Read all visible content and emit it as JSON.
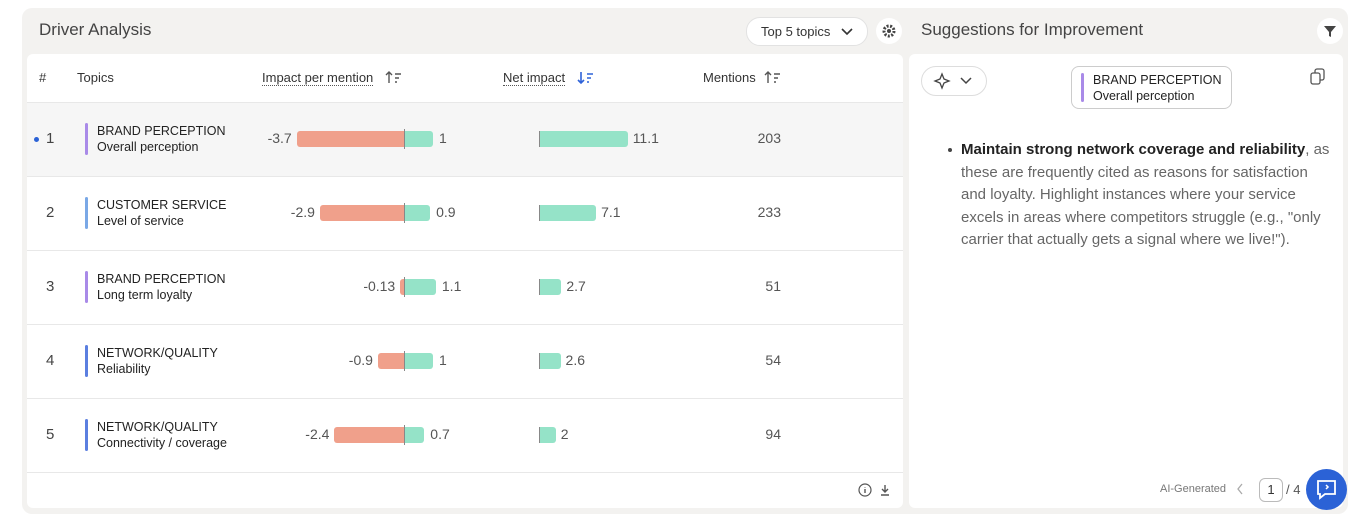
{
  "header": {
    "title": "Driver Analysis",
    "topics_dropdown": "Top 5 topics"
  },
  "table": {
    "columns": [
      "#",
      "Topics",
      "Impact per mention",
      "Net impact",
      "Mentions"
    ],
    "rows": [
      {
        "rank": 1,
        "category": "BRAND PERCEPTION",
        "topic": "Overall perception",
        "accent": "#a98ae8",
        "negative_impact": -3.7,
        "positive_impact": 1,
        "net_impact": 11.1,
        "mentions": 203
      },
      {
        "rank": 2,
        "category": "CUSTOMER SERVICE",
        "topic": "Level of service",
        "accent": "#7aa8e6",
        "negative_impact": -2.9,
        "positive_impact": 0.9,
        "net_impact": 7.1,
        "mentions": 233
      },
      {
        "rank": 3,
        "category": "BRAND PERCEPTION",
        "topic": "Long term loyalty",
        "accent": "#a98ae8",
        "negative_impact": -0.13,
        "positive_impact": 1.1,
        "net_impact": 2.7,
        "mentions": 51
      },
      {
        "rank": 4,
        "category": "NETWORK/QUALITY",
        "topic": "Reliability",
        "accent": "#5b7fe0",
        "negative_impact": -0.9,
        "positive_impact": 1,
        "net_impact": 2.6,
        "mentions": 54
      },
      {
        "rank": 5,
        "category": "NETWORK/QUALITY",
        "topic": "Connectivity / coverage",
        "accent": "#5b7fe0",
        "negative_impact": -2.4,
        "positive_impact": 0.7,
        "net_impact": 2,
        "mentions": 94
      }
    ],
    "negative_color": "#f0a08b",
    "positive_color": "#95e3c8"
  },
  "suggestions": {
    "title": "Suggestions for Improvement",
    "tag_category": "BRAND PERCEPTION",
    "tag_topic": "Overall perception",
    "bold_text": "Maintain strong network coverage and reliability",
    "text": ", as these are frequently cited as reasons for satisfaction and loyalty. Highlight instances where your service excels in areas where competitors struggle (e.g., \"only carrier that actually gets a signal where we live!\").",
    "footer_label": "AI-Generated",
    "page": 1,
    "page_total": "/ 4"
  }
}
